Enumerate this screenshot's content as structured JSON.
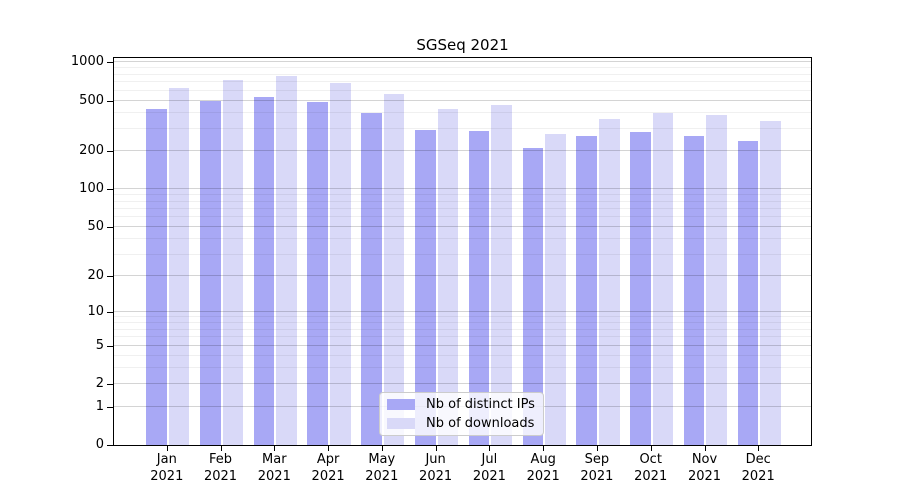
{
  "chart_data": {
    "type": "bar",
    "title": "SGSeq 2021",
    "categories": [
      {
        "month": "Jan",
        "year": "2021"
      },
      {
        "month": "Feb",
        "year": "2021"
      },
      {
        "month": "Mar",
        "year": "2021"
      },
      {
        "month": "Apr",
        "year": "2021"
      },
      {
        "month": "May",
        "year": "2021"
      },
      {
        "month": "Jun",
        "year": "2021"
      },
      {
        "month": "Jul",
        "year": "2021"
      },
      {
        "month": "Aug",
        "year": "2021"
      },
      {
        "month": "Sep",
        "year": "2021"
      },
      {
        "month": "Oct",
        "year": "2021"
      },
      {
        "month": "Nov",
        "year": "2021"
      },
      {
        "month": "Dec",
        "year": "2021"
      }
    ],
    "series": [
      {
        "key": "distinct-ips",
        "name": "Nb of distinct IPs",
        "color": "#a8a8f5",
        "values": [
          430,
          500,
          536,
          490,
          401,
          296,
          289,
          212,
          262,
          282,
          265,
          243
        ]
      },
      {
        "key": "downloads",
        "name": "Nb of downloads",
        "color": "#d9d9f8",
        "values": [
          628,
          730,
          777,
          688,
          561,
          432,
          460,
          275,
          357,
          403,
          385,
          347
        ]
      }
    ],
    "y_axis": {
      "scale": "log10(1+x)",
      "ylim": [
        0,
        1120
      ],
      "tick_values": [
        1000,
        500,
        200,
        100,
        50,
        20,
        10,
        5,
        2,
        1,
        0
      ],
      "tick_labels": [
        "1000",
        "500",
        "200",
        "100",
        "50",
        "20",
        "10",
        "5",
        "2",
        "1",
        "0"
      ],
      "minor_gridline_values": [
        900,
        800,
        700,
        600,
        400,
        300,
        90,
        80,
        70,
        60,
        40,
        30,
        9,
        8,
        7,
        6,
        4,
        3
      ]
    },
    "x_axis": {
      "label": ""
    },
    "legend": {
      "position": "inside-bottom-center"
    },
    "grid": "on"
  }
}
